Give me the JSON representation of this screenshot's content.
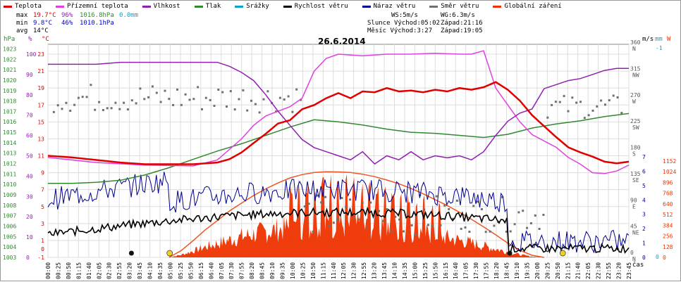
{
  "legend": [
    {
      "label": "Teplota",
      "color": "#e00000"
    },
    {
      "label": "Přízemní teplota",
      "color": "#e040e0"
    },
    {
      "label": "Vlhkost",
      "color": "#9020b0"
    },
    {
      "label": "Tlak",
      "color": "#308830"
    },
    {
      "label": "Srážky",
      "color": "#10a0d0"
    },
    {
      "label": "Rychlost větru",
      "color": "#000000"
    },
    {
      "label": "Náraz větru",
      "color": "#000090"
    },
    {
      "label": "Směr větru",
      "color": "#707070"
    },
    {
      "label": "Globální záření",
      "color": "#ee3300"
    }
  ],
  "stats": [
    {
      "label": "max",
      "temp": "19.7°C",
      "hum": "96%",
      "press": "1016.8hPa",
      "rain": "0.0mm"
    },
    {
      "label": "min",
      "temp": "9.8°C",
      "hum": "46%",
      "press": "1010.1hPa",
      "rain": ""
    },
    {
      "label": "avg",
      "temp": "14°C",
      "hum": "",
      "press": "",
      "rain": ""
    }
  ],
  "info": {
    "ws": "WS:5m/s",
    "wg": "WG:6.3m/s",
    "sun_label": "Slunce",
    "sun_rise": "Východ:05:02",
    "sun_set": "Západ:21:16",
    "moon_label": "Měsíc",
    "moon_rise": "Východ:3:27",
    "moon_set": "Západ:19:05"
  },
  "date": "26.6.2014",
  "chart_data": {
    "type": "line",
    "x_ticks": [
      "00:00",
      "00:25",
      "00:50",
      "01:15",
      "01:40",
      "02:05",
      "02:30",
      "02:55",
      "03:20",
      "03:45",
      "04:10",
      "04:35",
      "05:00",
      "05:25",
      "05:50",
      "06:15",
      "06:40",
      "07:05",
      "07:30",
      "07:55",
      "08:20",
      "08:45",
      "09:10",
      "09:35",
      "10:00",
      "10:25",
      "10:50",
      "11:15",
      "11:40",
      "12:05",
      "12:30",
      "12:55",
      "13:20",
      "13:45",
      "14:10",
      "14:35",
      "15:00",
      "15:25",
      "15:50",
      "16:15",
      "16:40",
      "17:05",
      "17:30",
      "17:55",
      "18:20",
      "18:45",
      "19:10",
      "19:35",
      "20:00",
      "20:25",
      "20:50",
      "21:15",
      "21:40",
      "22:05",
      "22:30",
      "22:55",
      "23:20",
      "23:45"
    ],
    "xlabel": "čas",
    "axes": {
      "pressure": {
        "unit": "hPa",
        "ticks": [
          "1003",
          "1004",
          "1005",
          "1006",
          "1007",
          "1008",
          "1009",
          "1010",
          "1011",
          "1012",
          "1013",
          "1014",
          "1015",
          "1016",
          "1017",
          "1018",
          "1019",
          "1020",
          "1021",
          "1022",
          "1023"
        ]
      },
      "humidity": {
        "unit": "%",
        "ticks": [
          "0",
          "10",
          "20",
          "30",
          "40",
          "50",
          "60",
          "70",
          "80",
          "90",
          "100"
        ]
      },
      "temperature": {
        "unit": "°C",
        "ticks": [
          "-1",
          "1",
          "3",
          "5",
          "7",
          "9",
          "11",
          "13",
          "15",
          "17",
          "19",
          "21",
          "23"
        ],
        "extra_ticks": [
          "0"
        ]
      },
      "wind_dir": {
        "unit": "m/s",
        "ticks": [
          "0 N",
          "45 NE",
          "90 E",
          "135 SE",
          "180 S",
          "225 SW",
          "270 W",
          "315 NW",
          "360 N"
        ]
      },
      "wind_speed": {
        "unit": "m/s",
        "ticks": [
          "0",
          "1",
          "2",
          "3",
          "4",
          "5",
          "6",
          "7"
        ]
      },
      "rain": {
        "unit": "mm",
        "ticks": [
          "0",
          "-1"
        ]
      },
      "radiation": {
        "unit": "W",
        "ticks": [
          "0",
          "128",
          "256",
          "384",
          "512",
          "640",
          "768",
          "896",
          "1024",
          "1152"
        ]
      }
    },
    "series": [
      {
        "name": "Teplota",
        "unit": "°C",
        "points": [
          [
            0,
            11.0
          ],
          [
            1,
            10.8
          ],
          [
            2,
            10.5
          ],
          [
            3,
            10.2
          ],
          [
            4,
            10.0
          ],
          [
            5,
            10.0
          ],
          [
            6,
            10.0
          ],
          [
            7,
            10.2
          ],
          [
            7.5,
            10.6
          ],
          [
            8,
            11.4
          ],
          [
            8.5,
            12.5
          ],
          [
            9,
            13.6
          ],
          [
            9.5,
            14.8
          ],
          [
            10,
            15.2
          ],
          [
            10.5,
            16.5
          ],
          [
            11,
            17.0
          ],
          [
            11.5,
            17.8
          ],
          [
            12,
            18.4
          ],
          [
            12.5,
            17.8
          ],
          [
            13,
            18.6
          ],
          [
            13.5,
            18.5
          ],
          [
            14,
            19.0
          ],
          [
            14.5,
            18.6
          ],
          [
            15,
            18.7
          ],
          [
            15.5,
            18.5
          ],
          [
            16,
            18.8
          ],
          [
            16.5,
            18.6
          ],
          [
            17,
            19.0
          ],
          [
            17.5,
            18.8
          ],
          [
            18,
            19.1
          ],
          [
            18.5,
            19.7
          ],
          [
            19,
            18.8
          ],
          [
            19.5,
            17.5
          ],
          [
            20,
            15.8
          ],
          [
            20.5,
            14.5
          ],
          [
            21,
            13.2
          ],
          [
            21.5,
            12.0
          ],
          [
            22,
            11.4
          ],
          [
            22.5,
            10.9
          ],
          [
            23,
            10.3
          ],
          [
            23.5,
            10.1
          ],
          [
            24,
            10.3
          ]
        ]
      },
      {
        "name": "Přízemní teplota",
        "unit": "°C",
        "points": [
          [
            0,
            10.8
          ],
          [
            2,
            10.2
          ],
          [
            4,
            9.9
          ],
          [
            6,
            9.8
          ],
          [
            7,
            10.5
          ],
          [
            8,
            13.0
          ],
          [
            8.5,
            14.6
          ],
          [
            9,
            15.7
          ],
          [
            10,
            16.8
          ],
          [
            10.5,
            17.8
          ],
          [
            11,
            21.0
          ],
          [
            11.5,
            22.5
          ],
          [
            12,
            23.0
          ],
          [
            13,
            22.8
          ],
          [
            14,
            23.0
          ],
          [
            15,
            23.0
          ],
          [
            16,
            23.1
          ],
          [
            17,
            23.0
          ],
          [
            17.5,
            23.0
          ],
          [
            18,
            23.4
          ],
          [
            18.5,
            19.0
          ],
          [
            19,
            17.0
          ],
          [
            19.5,
            15.0
          ],
          [
            20,
            13.5
          ],
          [
            21,
            12.0
          ],
          [
            21.5,
            10.8
          ],
          [
            22,
            10.0
          ],
          [
            22.5,
            9.0
          ],
          [
            23,
            8.9
          ],
          [
            23.5,
            9.2
          ],
          [
            24,
            9.9
          ]
        ]
      },
      {
        "name": "Vlhkost",
        "unit": "%",
        "points": [
          [
            0,
            95
          ],
          [
            1,
            95
          ],
          [
            2,
            95
          ],
          [
            3,
            96
          ],
          [
            4,
            96
          ],
          [
            5,
            96
          ],
          [
            6,
            96
          ],
          [
            7,
            96
          ],
          [
            7.5,
            94
          ],
          [
            8,
            91
          ],
          [
            8.5,
            87
          ],
          [
            9,
            80
          ],
          [
            9.5,
            72
          ],
          [
            10,
            65
          ],
          [
            10.5,
            58
          ],
          [
            11,
            54
          ],
          [
            11.5,
            52
          ],
          [
            12,
            50
          ],
          [
            12.5,
            48
          ],
          [
            13,
            52
          ],
          [
            13.5,
            46
          ],
          [
            14,
            50
          ],
          [
            14.5,
            48
          ],
          [
            15,
            52
          ],
          [
            15.5,
            48
          ],
          [
            16,
            50
          ],
          [
            16.5,
            49
          ],
          [
            17,
            50
          ],
          [
            17.5,
            48
          ],
          [
            18,
            52
          ],
          [
            18.5,
            60
          ],
          [
            19,
            67
          ],
          [
            19.5,
            71
          ],
          [
            20,
            73
          ],
          [
            20.5,
            83
          ],
          [
            21,
            85
          ],
          [
            21.5,
            87
          ],
          [
            22,
            88
          ],
          [
            22.5,
            90
          ],
          [
            23,
            92
          ],
          [
            23.5,
            93
          ],
          [
            24,
            93
          ]
        ]
      },
      {
        "name": "Tlak",
        "unit": "hPa",
        "points": [
          [
            0,
            1010.1
          ],
          [
            1,
            1010.1
          ],
          [
            2,
            1010.2
          ],
          [
            3,
            1010.4
          ],
          [
            4,
            1010.9
          ],
          [
            5,
            1011.6
          ],
          [
            6,
            1012.4
          ],
          [
            7,
            1013.2
          ],
          [
            8,
            1013.9
          ],
          [
            9,
            1014.7
          ],
          [
            10,
            1015.5
          ],
          [
            11,
            1016.2
          ],
          [
            12,
            1016.0
          ],
          [
            13,
            1015.7
          ],
          [
            14,
            1015.3
          ],
          [
            15,
            1015.0
          ],
          [
            16,
            1014.9
          ],
          [
            17,
            1014.7
          ],
          [
            18,
            1014.5
          ],
          [
            19,
            1014.8
          ],
          [
            20,
            1015.4
          ],
          [
            21,
            1015.8
          ],
          [
            22,
            1016.1
          ],
          [
            23,
            1016.5
          ],
          [
            24,
            1016.8
          ]
        ]
      },
      {
        "name": "Globální záření",
        "unit": "W",
        "points": [
          [
            5.0,
            0
          ],
          [
            5.5,
            80
          ],
          [
            6,
            200
          ],
          [
            6.5,
            330
          ],
          [
            7,
            440
          ],
          [
            7.5,
            555
          ],
          [
            8,
            650
          ],
          [
            8.5,
            740
          ],
          [
            9,
            820
          ],
          [
            9.5,
            890
          ],
          [
            10,
            950
          ],
          [
            10.5,
            990
          ],
          [
            11,
            1015
          ],
          [
            11.5,
            1024
          ],
          [
            12,
            1022
          ],
          [
            12.5,
            1015
          ],
          [
            13,
            995
          ],
          [
            13.5,
            965
          ],
          [
            14,
            925
          ],
          [
            14.5,
            880
          ],
          [
            15,
            825
          ],
          [
            15.5,
            760
          ],
          [
            16,
            690
          ],
          [
            16.5,
            620
          ],
          [
            17,
            540
          ],
          [
            17.5,
            455
          ],
          [
            18,
            365
          ],
          [
            18.5,
            270
          ],
          [
            19,
            170
          ],
          [
            19.5,
            85
          ],
          [
            20,
            25
          ],
          [
            20.5,
            0
          ]
        ]
      }
    ]
  }
}
